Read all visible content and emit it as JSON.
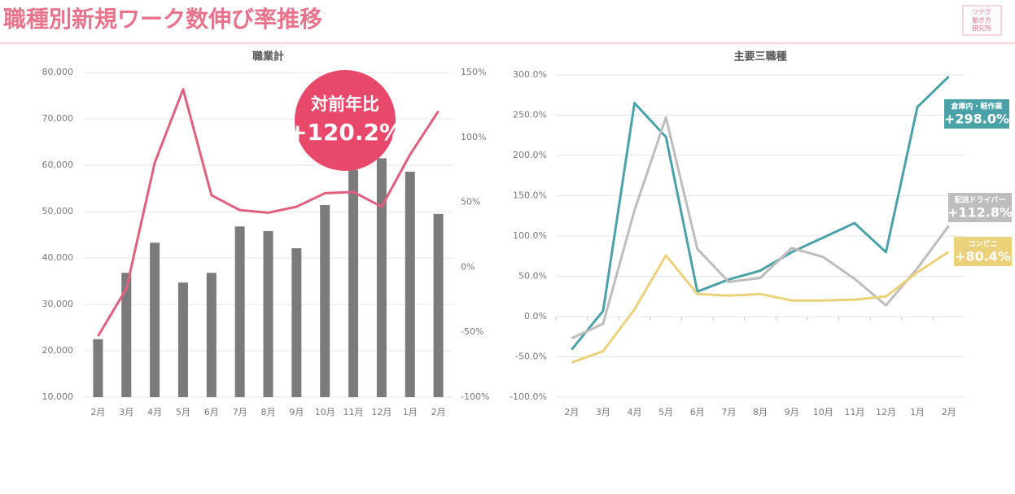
{
  "title": "職種別新規ワーク数伸び率推移",
  "logo": [
    "ツナグ",
    "働き方",
    "研究所"
  ],
  "chart_data": [
    {
      "type": "combo",
      "title": "職業計",
      "categories": [
        "2月",
        "3月",
        "4月",
        "5月",
        "6月",
        "7月",
        "8月",
        "9月",
        "10月",
        "11月",
        "12月",
        "1月",
        "2月"
      ],
      "series": [
        {
          "type": "bar",
          "color": "#7b7b7b",
          "values": [
            22500,
            36800,
            43300,
            34700,
            36800,
            46800,
            45800,
            42100,
            51400,
            59000,
            61500,
            58600,
            49500
          ]
        },
        {
          "type": "line",
          "axis": "y2",
          "color": "#e0607e",
          "values": [
            -53,
            -16.5,
            80.5,
            137,
            55.4,
            44,
            42,
            46.6,
            57,
            58,
            46.6,
            86.7,
            120.2
          ],
          "value_labels": [
            null,
            null,
            null,
            null,
            null,
            null,
            null,
            null,
            null,
            null,
            null,
            null,
            "+120.2%"
          ]
        }
      ],
      "annotation": "対前年比",
      "ylim": [
        10000,
        80000
      ],
      "yticks": [
        {
          "value": 10000,
          "label": "10,000"
        },
        {
          "value": 20000,
          "label": "20,000"
        },
        {
          "value": 30000,
          "label": "30,000"
        },
        {
          "value": 40000,
          "label": "40,000"
        },
        {
          "value": 50000,
          "label": "50,000"
        },
        {
          "value": 60000,
          "label": "60,000"
        },
        {
          "value": 70000,
          "label": "70,000"
        },
        {
          "value": 80000,
          "label": "80,000"
        }
      ],
      "y2lim": [
        -100,
        150
      ],
      "y2ticks": [
        {
          "value": -100,
          "label": "-100%"
        },
        {
          "value": -50,
          "label": "-50%"
        },
        {
          "value": 0,
          "label": "0%"
        },
        {
          "value": 50,
          "label": "50%"
        },
        {
          "value": 100,
          "label": "100%"
        },
        {
          "value": 150,
          "label": "150%"
        }
      ],
      "grid": true
    },
    {
      "type": "line",
      "title": "主要三職種",
      "categories": [
        "2月",
        "3月",
        "4月",
        "5月",
        "6月",
        "7月",
        "8月",
        "9月",
        "10月",
        "11月",
        "12月",
        "1月",
        "2月"
      ],
      "series": [
        {
          "name": "倉庫内・軽作業",
          "color": "#4aa2a8",
          "values": [
            -41,
            7,
            265,
            223,
            31,
            46,
            57,
            80,
            98,
            116,
            80,
            260,
            298.0
          ],
          "value_labels": [
            null,
            null,
            null,
            null,
            null,
            null,
            null,
            null,
            null,
            null,
            null,
            null,
            "+298.0%"
          ]
        },
        {
          "name": "配送ドライバー",
          "color": "#bdbdbd",
          "values": [
            -27,
            -9,
            132,
            247,
            84,
            43,
            48,
            85,
            74,
            47,
            14,
            60,
            112.8
          ],
          "value_labels": [
            null,
            null,
            null,
            null,
            null,
            null,
            null,
            null,
            null,
            null,
            null,
            null,
            "+112.8%"
          ]
        },
        {
          "name": "コンビニ",
          "color": "#ebd27a",
          "values": [
            -57,
            -43,
            9,
            76,
            28,
            26,
            28,
            20,
            20,
            21,
            25,
            55,
            80.4
          ],
          "value_labels": [
            null,
            null,
            null,
            null,
            null,
            null,
            null,
            null,
            null,
            null,
            null,
            null,
            "+80.4%"
          ]
        }
      ],
      "ylim": [
        -100,
        300
      ],
      "yticks": [
        {
          "value": -100,
          "label": "-100.0%"
        },
        {
          "value": -50,
          "label": "-50.0%"
        },
        {
          "value": 0,
          "label": "0.0%"
        },
        {
          "value": 50,
          "label": "50.0%"
        },
        {
          "value": 100,
          "label": "100.0%"
        },
        {
          "value": 150,
          "label": "150.0%"
        },
        {
          "value": 200,
          "label": "200.0%"
        },
        {
          "value": 250,
          "label": "250.0%"
        },
        {
          "value": 300,
          "label": "300.0%"
        }
      ],
      "grid": true
    }
  ]
}
